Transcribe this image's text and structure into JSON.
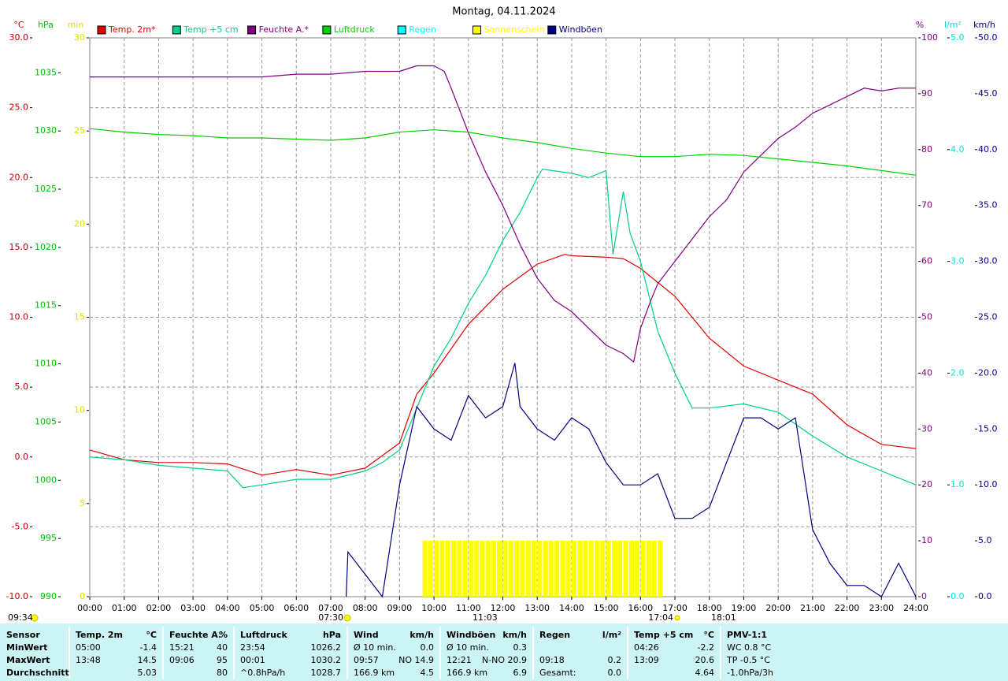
{
  "chart_data": {
    "type": "line",
    "title": "Montag, 04.11.2024",
    "grid": true,
    "xlim": [
      0,
      24
    ],
    "xticks": [
      {
        "value": 0,
        "label": "00:00"
      },
      {
        "value": 1,
        "label": "01:00"
      },
      {
        "value": 2,
        "label": "02:00"
      },
      {
        "value": 3,
        "label": "03:00"
      },
      {
        "value": 4,
        "label": "04:00"
      },
      {
        "value": 5,
        "label": "05:00"
      },
      {
        "value": 6,
        "label": "06:00"
      },
      {
        "value": 7,
        "label": "07:00"
      },
      {
        "value": 8,
        "label": "08:00"
      },
      {
        "value": 9,
        "label": "09:00"
      },
      {
        "value": 10,
        "label": "10:00"
      },
      {
        "value": 11,
        "label": "11:00"
      },
      {
        "value": 12,
        "label": "12:00"
      },
      {
        "value": 13,
        "label": "13:00"
      },
      {
        "value": 14,
        "label": "14:00"
      },
      {
        "value": 15,
        "label": "15:00"
      },
      {
        "value": 16,
        "label": "16:00"
      },
      {
        "value": 17,
        "label": "17:00"
      },
      {
        "value": 18,
        "label": "18:00"
      },
      {
        "value": 19,
        "label": "19:00"
      },
      {
        "value": 20,
        "label": "20:00"
      },
      {
        "value": 21,
        "label": "21:00"
      },
      {
        "value": 22,
        "label": "22:00"
      },
      {
        "value": 23,
        "label": "23:00"
      },
      {
        "value": 24,
        "label": "24:00"
      }
    ],
    "axes": {
      "temp": {
        "label": "°C",
        "color": "#c00000",
        "lim": [
          -10,
          30
        ],
        "ticks": [
          {
            "value": -10,
            "label": "-10.0"
          },
          {
            "value": -5,
            "label": "-5.0"
          },
          {
            "value": 0,
            "label": "0.0"
          },
          {
            "value": 5,
            "label": "5.0"
          },
          {
            "value": 10,
            "label": "10.0"
          },
          {
            "value": 15,
            "label": "15.0"
          },
          {
            "value": 20,
            "label": "20.0"
          },
          {
            "value": 25,
            "label": "25.0"
          },
          {
            "value": 30,
            "label": "30.0"
          }
        ]
      },
      "pressure": {
        "label": "hPa",
        "color": "#00c000",
        "lim": [
          990,
          1038
        ],
        "ticks": [
          990,
          995,
          1000,
          1005,
          1010,
          1015,
          1020,
          1025,
          1030,
          1035
        ]
      },
      "minutes": {
        "label": "min",
        "color": "#e0e000",
        "lim": [
          0,
          30
        ],
        "ticks": [
          0,
          5,
          10,
          15,
          20,
          25,
          30
        ]
      },
      "humidity": {
        "label": "%",
        "color": "#800080",
        "lim": [
          0,
          100
        ],
        "ticks": [
          0,
          10,
          20,
          30,
          40,
          50,
          60,
          70,
          80,
          90,
          100
        ]
      },
      "rain": {
        "label": "l/m²",
        "color": "#00e0e0",
        "lim": [
          0,
          5
        ],
        "ticks": [
          {
            "value": 0,
            "label": "0.0"
          },
          {
            "value": 1,
            "label": "1.0"
          },
          {
            "value": 2,
            "label": "2.0"
          },
          {
            "value": 3,
            "label": "3.0"
          },
          {
            "value": 4,
            "label": "4.0"
          },
          {
            "value": 5,
            "label": "5.0"
          }
        ]
      },
      "wind": {
        "label": "km/h",
        "color": "#000080",
        "lim": [
          0,
          50
        ],
        "ticks": [
          {
            "value": 0,
            "label": "0.0"
          },
          {
            "value": 5,
            "label": "5.0"
          },
          {
            "value": 10,
            "label": "10.0"
          },
          {
            "value": 15,
            "label": "15.0"
          },
          {
            "value": 20,
            "label": "20.0"
          },
          {
            "value": 25,
            "label": "25.0"
          },
          {
            "value": 30,
            "label": "30.0"
          },
          {
            "value": 35,
            "label": "35.0"
          },
          {
            "value": 40,
            "label": "40.0"
          },
          {
            "value": 45,
            "label": "45.0"
          },
          {
            "value": 50,
            "label": "50.0"
          }
        ]
      }
    },
    "series": [
      {
        "name": "Temp. 2m*",
        "type": "line",
        "axis": "temp",
        "color": "#e00000",
        "x": [
          0,
          1,
          2,
          3,
          4,
          5,
          6,
          7,
          8,
          9,
          9.5,
          10,
          11,
          12,
          13,
          13.8,
          14,
          15,
          15.5,
          16,
          17,
          18,
          19,
          20,
          21,
          22,
          23,
          24
        ],
        "values": [
          0.5,
          -0.2,
          -0.4,
          -0.4,
          -0.5,
          -1.3,
          -0.9,
          -1.3,
          -0.8,
          1.0,
          4.5,
          6.0,
          9.5,
          12.0,
          13.8,
          14.5,
          14.4,
          14.3,
          14.2,
          13.5,
          11.5,
          8.5,
          6.5,
          5.5,
          4.5,
          2.3,
          0.9,
          0.6
        ]
      },
      {
        "name": "Temp +5 cm",
        "type": "line",
        "axis": "temp",
        "color": "#00d080",
        "x": [
          0,
          1,
          2,
          3,
          4,
          4.45,
          5,
          6,
          7,
          8,
          8.5,
          9,
          9.5,
          10,
          10.5,
          11,
          11.5,
          12,
          12.5,
          13,
          13.15,
          14,
          14.5,
          15,
          15.2,
          15.5,
          15.7,
          16,
          16.5,
          17,
          17.5,
          18,
          19,
          20,
          21,
          22,
          23,
          24
        ],
        "values": [
          0,
          -0.2,
          -0.6,
          -0.8,
          -1.0,
          -2.2,
          -2.0,
          -1.6,
          -1.6,
          -1.0,
          -0.4,
          0.5,
          3.5,
          6.5,
          8.5,
          11.0,
          13.0,
          15.5,
          17.5,
          20.0,
          20.6,
          20.3,
          20.0,
          20.5,
          14.5,
          19.0,
          16.0,
          14.0,
          9.0,
          6.0,
          3.5,
          3.5,
          3.8,
          3.2,
          1.5,
          0.0,
          -1.0,
          -2.0
        ]
      },
      {
        "name": "Feuchte A.*",
        "type": "line",
        "axis": "humidity",
        "color": "#800080",
        "x": [
          0,
          2,
          4,
          5,
          6,
          7,
          8,
          9,
          9.5,
          10,
          10.3,
          10.5,
          11,
          11.5,
          12,
          12.5,
          13,
          13.5,
          14,
          14.5,
          15,
          15.5,
          15.8,
          16,
          16.3,
          16.5,
          17,
          17.5,
          18,
          18.5,
          19,
          19.5,
          20,
          20.5,
          21,
          21.5,
          22,
          22.5,
          23,
          23.5,
          24
        ],
        "values": [
          93,
          93,
          93,
          93,
          93.5,
          93.5,
          94,
          94,
          95,
          95,
          94,
          91,
          83,
          76,
          70,
          63,
          57,
          53,
          51,
          48,
          45,
          43.5,
          42,
          48,
          53,
          56,
          60,
          64,
          68,
          71,
          76,
          79,
          82,
          84,
          86.5,
          88,
          89.5,
          91,
          90.5,
          91,
          91
        ]
      },
      {
        "name": "Luftdruck",
        "type": "line",
        "axis": "pressure",
        "color": "#00d000",
        "x": [
          0,
          1,
          2,
          3,
          4,
          5,
          6,
          7,
          8,
          9,
          10,
          11,
          12,
          13,
          14,
          15,
          16,
          17,
          18,
          19,
          20,
          21,
          22,
          23,
          24
        ],
        "values": [
          1030.2,
          1029.9,
          1029.7,
          1029.6,
          1029.4,
          1029.4,
          1029.3,
          1029.2,
          1029.4,
          1029.9,
          1030.1,
          1029.9,
          1029.4,
          1029.0,
          1028.5,
          1028.1,
          1027.8,
          1027.8,
          1028.0,
          1027.9,
          1027.6,
          1027.3,
          1027.0,
          1026.6,
          1026.2
        ]
      },
      {
        "name": "Regen",
        "type": "line",
        "axis": "rain",
        "color": "#00ffff",
        "x": [],
        "values": []
      },
      {
        "name": "Sonnenschein",
        "type": "bar",
        "axis": "minutes",
        "color": "#ffff00",
        "x": [
          9.67,
          9.83,
          10,
          10.17,
          10.33,
          10.5,
          10.67,
          10.83,
          11,
          11.17,
          11.33,
          11.5,
          11.67,
          11.83,
          12,
          12.17,
          12.33,
          12.5,
          12.67,
          12.83,
          13,
          13.17,
          13.33,
          13.5,
          13.67,
          13.83,
          14,
          14.17,
          14.33,
          14.5,
          14.67,
          14.83,
          15,
          15.17,
          15.33,
          15.5,
          15.67,
          15.83,
          16,
          16.17,
          16.33,
          16.5
        ],
        "values": [
          3,
          3,
          3,
          3,
          3,
          3,
          3,
          3,
          3,
          3,
          3,
          3,
          3,
          3,
          3,
          3,
          3,
          3,
          3,
          3,
          3,
          3,
          3,
          3,
          3,
          3,
          3,
          3,
          3,
          3,
          3,
          3,
          3,
          3,
          3,
          3,
          3,
          3,
          3,
          3,
          3,
          3
        ]
      },
      {
        "name": "Windböen",
        "type": "line",
        "axis": "wind",
        "color": "#000080",
        "x": [
          7.45,
          7.5,
          8,
          8.5,
          9,
          9.5,
          10,
          10.5,
          11,
          11.5,
          12,
          12.35,
          12.5,
          13,
          13.5,
          14,
          14.5,
          15,
          15.5,
          16,
          16.5,
          17,
          17.5,
          18,
          18.5,
          19,
          19.5,
          20,
          20.5,
          21,
          21.5,
          22,
          22.5,
          23,
          23.5,
          24
        ],
        "values": [
          0,
          4,
          2,
          0,
          10,
          17,
          15,
          14,
          18,
          16,
          17,
          20.9,
          17,
          15,
          14,
          16,
          15,
          12,
          10,
          10,
          11,
          7,
          7,
          8,
          12,
          16,
          16,
          15,
          16,
          6,
          3,
          1,
          1,
          0,
          3,
          0
        ]
      }
    ],
    "annotations": [
      "09:34",
      "07:30",
      "11:03",
      "17:04",
      "18:01"
    ]
  },
  "table": {
    "header": [
      {
        "name": "Sensor"
      },
      {
        "name": "Temp. 2m",
        "unit": "°C"
      },
      {
        "name": "Feuchte A.",
        "unit": "%"
      },
      {
        "name": "Luftdruck",
        "unit": "hPa"
      },
      {
        "name": "Wind",
        "unit": "km/h"
      },
      {
        "name": "Windböen",
        "unit": "km/h"
      },
      {
        "name": "Regen",
        "unit": "l/m²"
      },
      {
        "name": "Temp +5 cm",
        "unit": "°C"
      },
      {
        "name": "PMV-1:1"
      }
    ],
    "rows": [
      {
        "label": "MinWert",
        "cells": [
          {
            "left": "05:00",
            "right": "-1.4"
          },
          {
            "left": "15:21",
            "right": "40"
          },
          {
            "left": "23:54",
            "right": "1026.2"
          },
          {
            "left": "Ø 10 min.",
            "right": "0.0"
          },
          {
            "left": "Ø 10 min.",
            "right": "0.3"
          },
          {},
          {
            "left": "04:26",
            "right": "-2.2"
          },
          {
            "left": "WC 0.8 °C"
          }
        ]
      },
      {
        "label": "MaxWert",
        "cells": [
          {
            "left": "13:48",
            "right": "14.5"
          },
          {
            "left": "09:06",
            "right": "95"
          },
          {
            "left": "00:01",
            "right": "1030.2"
          },
          {
            "left": "09:57",
            "right": "NO 14.9"
          },
          {
            "left": "12:21",
            "right": "N-NO 20.9"
          },
          {
            "left": "09:18",
            "right": "0.2"
          },
          {
            "left": "13:09",
            "right": "20.6"
          },
          {
            "left": "TP -0.5 °C"
          }
        ]
      },
      {
        "label": "Durchschnitt",
        "cells": [
          {
            "right": "5.03"
          },
          {
            "right": "80"
          },
          {
            "left": "^0.8hPa/h",
            "right": "1028.7"
          },
          {
            "left": "166.9 km",
            "right": "4.5"
          },
          {
            "left": "166.9 km",
            "right": "6.9"
          },
          {
            "left": "Gesamt:",
            "right": "0.0"
          },
          {
            "right": "4.64"
          },
          {
            "left": "-1.0hPa/3h"
          }
        ]
      }
    ]
  }
}
